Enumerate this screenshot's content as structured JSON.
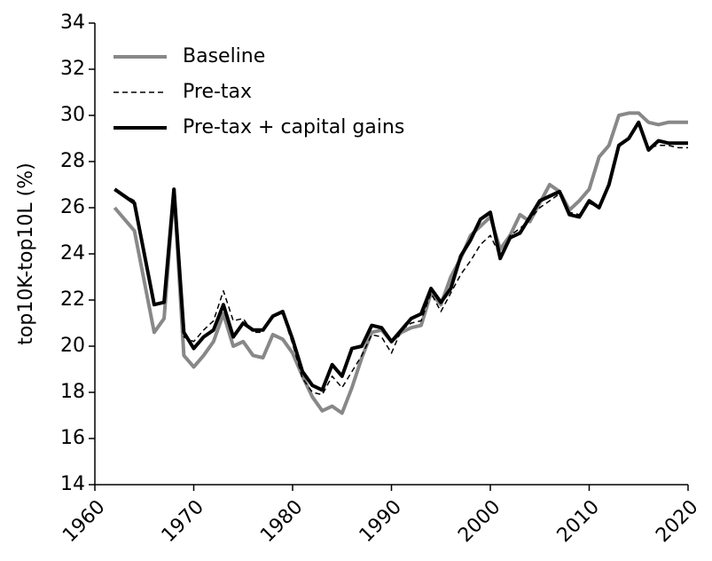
{
  "chart_data": {
    "type": "line",
    "y_label": "top10K-top10L (%)",
    "x": [
      1962,
      1964,
      1966,
      1967,
      1968,
      1969,
      1970,
      1971,
      1972,
      1973,
      1974,
      1975,
      1976,
      1977,
      1978,
      1979,
      1980,
      1981,
      1982,
      1983,
      1984,
      1985,
      1986,
      1987,
      1988,
      1989,
      1990,
      1991,
      1992,
      1993,
      1994,
      1995,
      1996,
      1997,
      1998,
      1999,
      2000,
      2001,
      2002,
      2003,
      2004,
      2005,
      2006,
      2007,
      2008,
      2009,
      2010,
      2011,
      2012,
      2013,
      2014,
      2015,
      2016,
      2017,
      2018,
      2019,
      2020
    ],
    "series": [
      {
        "name": "Baseline",
        "color": "#888888",
        "style": "solid",
        "width": 4,
        "values": [
          26.0,
          25.0,
          20.6,
          21.2,
          26.8,
          19.6,
          19.1,
          19.6,
          20.2,
          21.4,
          20.0,
          20.2,
          19.6,
          19.5,
          20.5,
          20.3,
          19.7,
          18.7,
          17.8,
          17.2,
          17.4,
          17.1,
          18.2,
          19.5,
          20.6,
          20.7,
          20.2,
          20.6,
          20.8,
          20.9,
          22.3,
          21.8,
          23.0,
          23.8,
          24.8,
          25.2,
          25.6,
          24.2,
          24.8,
          25.7,
          25.4,
          26.2,
          27.0,
          26.7,
          25.9,
          26.3,
          26.8,
          28.2,
          28.7,
          30.0,
          30.1,
          30.1,
          29.7,
          29.6,
          29.7,
          29.7,
          29.7
        ]
      },
      {
        "name": "Pre-tax",
        "color": "#000000",
        "style": "dashed",
        "width": 1.5,
        "values": [
          26.8,
          26.3,
          21.8,
          21.9,
          26.8,
          20.4,
          20.2,
          20.7,
          21.1,
          22.4,
          21.1,
          21.2,
          20.6,
          20.6,
          21.3,
          21.4,
          20.1,
          18.6,
          18.0,
          17.9,
          18.7,
          18.2,
          18.9,
          19.6,
          20.5,
          20.4,
          19.7,
          20.7,
          21.0,
          21.1,
          22.3,
          21.5,
          22.3,
          23.1,
          23.7,
          24.4,
          24.8,
          23.9,
          24.8,
          25.1,
          25.5,
          26.0,
          26.3,
          26.6,
          25.8,
          25.7,
          26.2,
          26.0,
          27.1,
          28.6,
          29.0,
          29.6,
          28.6,
          28.7,
          28.7,
          28.6,
          28.6
        ]
      },
      {
        "name": "Pre-tax + capital gains",
        "color": "#000000",
        "style": "solid",
        "width": 4,
        "values": [
          26.8,
          26.2,
          21.8,
          21.9,
          26.8,
          20.6,
          19.9,
          20.4,
          20.7,
          21.8,
          20.4,
          21.0,
          20.7,
          20.7,
          21.3,
          21.5,
          20.3,
          18.9,
          18.3,
          18.1,
          19.2,
          18.7,
          19.9,
          20.0,
          20.9,
          20.8,
          20.2,
          20.7,
          21.2,
          21.4,
          22.5,
          21.9,
          22.5,
          23.9,
          24.6,
          25.5,
          25.8,
          23.8,
          24.7,
          24.9,
          25.6,
          26.3,
          26.5,
          26.7,
          25.7,
          25.6,
          26.3,
          26.0,
          27.0,
          28.7,
          29.0,
          29.7,
          28.5,
          28.9,
          28.8,
          28.8,
          28.8
        ]
      }
    ],
    "xlim": [
      1960,
      2020
    ],
    "xticks": [
      1960,
      1970,
      1980,
      1990,
      2000,
      2010,
      2020
    ],
    "ylim": [
      14,
      34
    ],
    "yticks": [
      14,
      16,
      18,
      20,
      22,
      24,
      26,
      28,
      30,
      32,
      34
    ],
    "legend": "upper-left",
    "grid": false
  }
}
